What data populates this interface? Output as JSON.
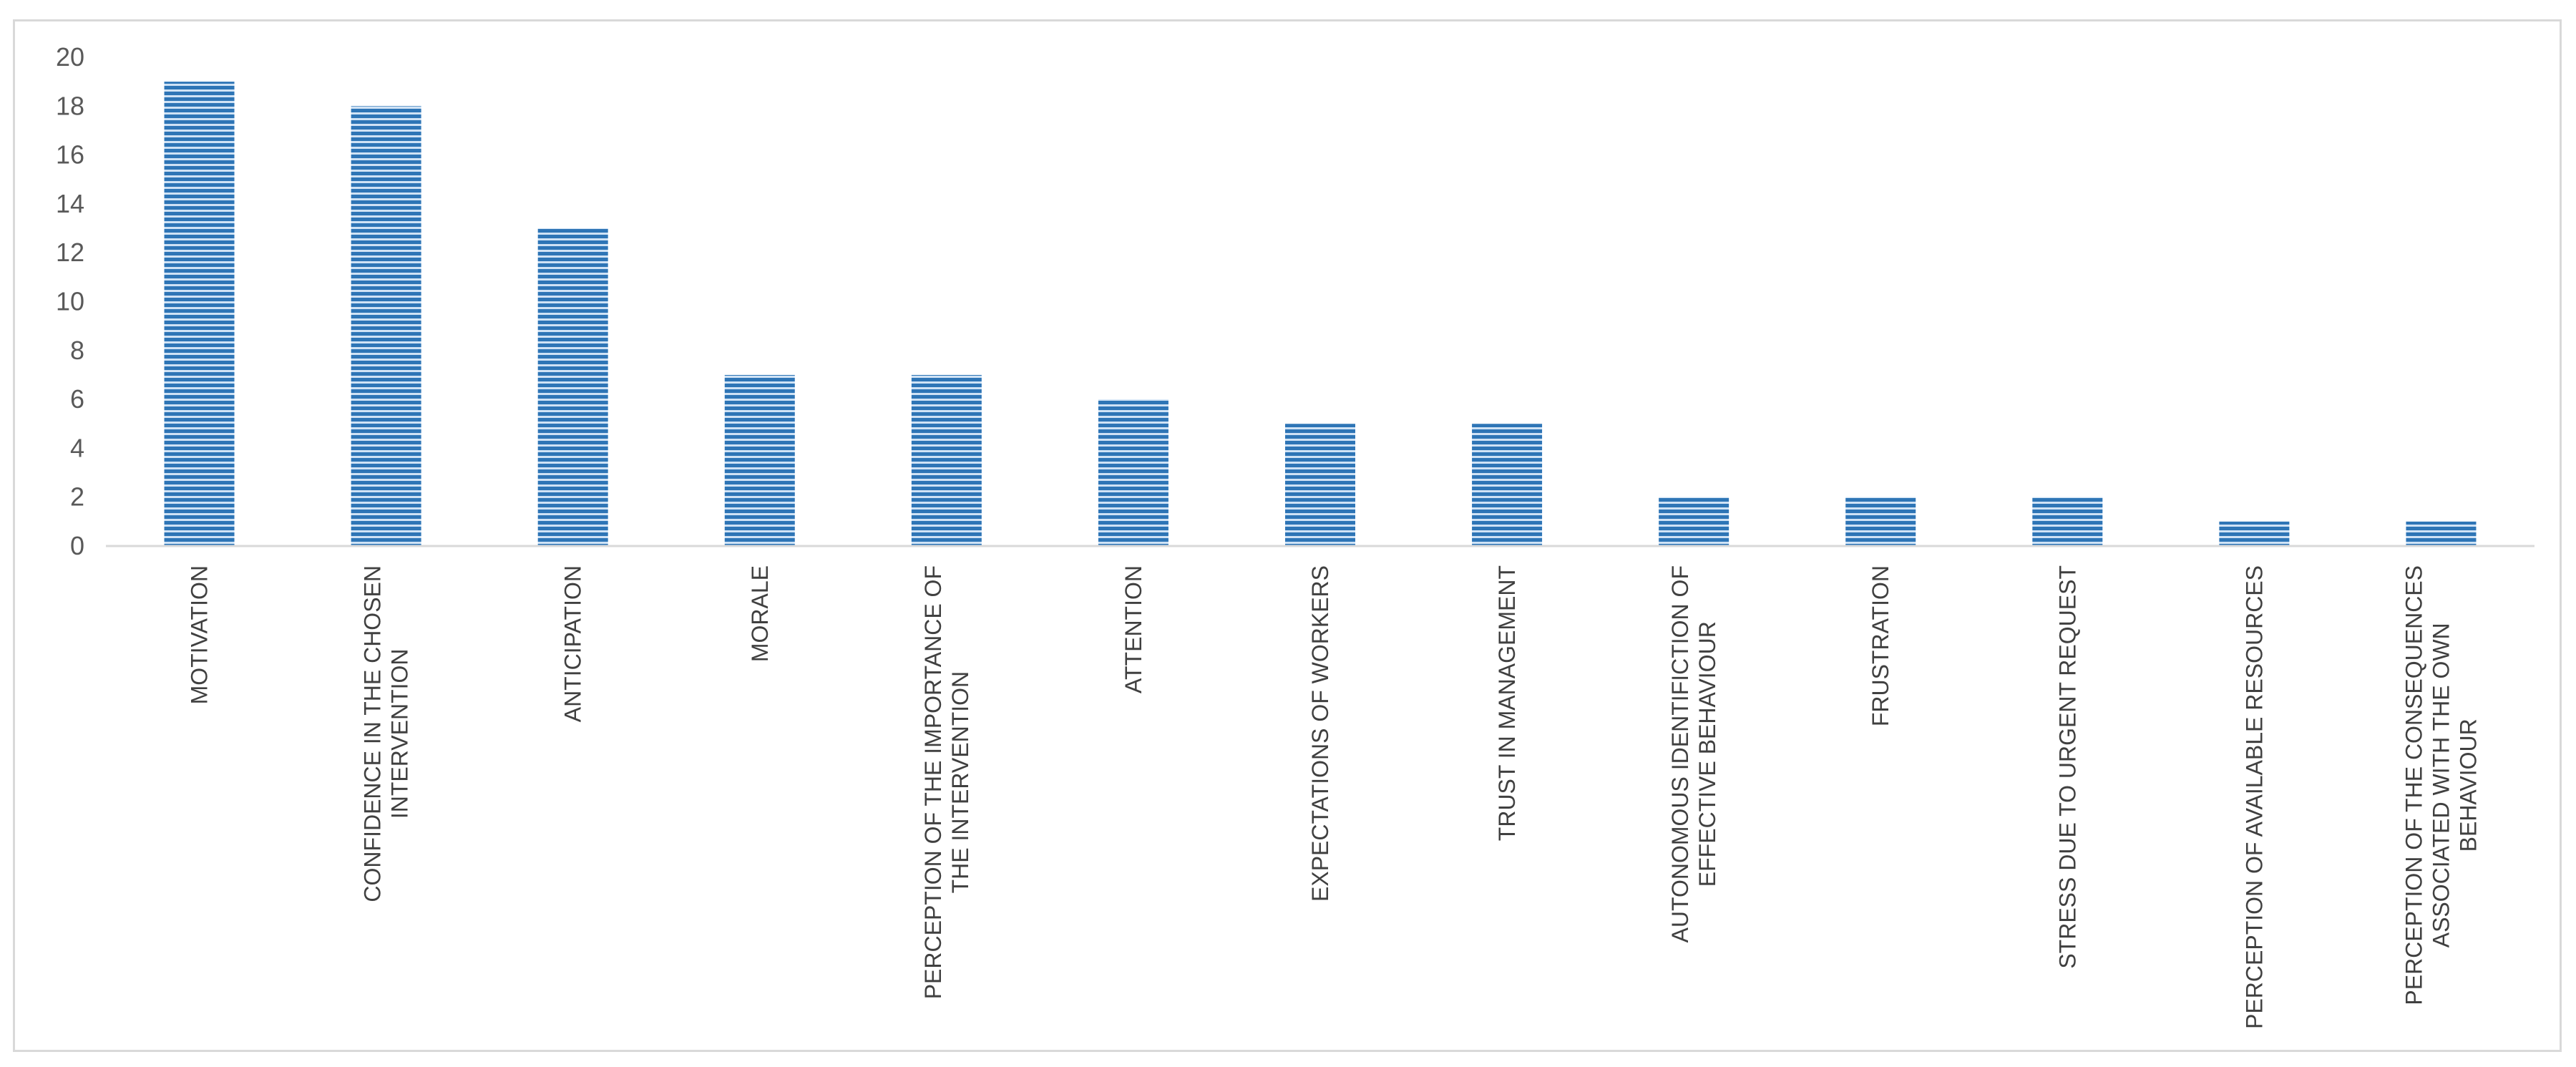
{
  "chart_data": {
    "type": "bar",
    "title": "",
    "xlabel": "",
    "ylabel": "",
    "ylim": [
      0,
      20
    ],
    "yticks": [
      0,
      2,
      4,
      6,
      8,
      10,
      12,
      14,
      16,
      18,
      20
    ],
    "grid": false,
    "legend": "none",
    "bar_color": "#2e75b6",
    "bar_stripe_color": "#cfe2f5",
    "categories": [
      [
        "MOTIVATION"
      ],
      [
        "CONFIDENCE IN THE CHOSEN",
        "INTERVENTION"
      ],
      [
        "ANTICIPATION"
      ],
      [
        "MORALE"
      ],
      [
        "PERCEPTION OF THE IMPORTANCE OF",
        "THE INTERVENTION"
      ],
      [
        "ATTENTION"
      ],
      [
        "EXPECTATIONS OF WORKERS"
      ],
      [
        "TRUST IN MANAGEMENT"
      ],
      [
        "AUTONOMOUS IDENTIFICTION OF",
        "EFFECTIVE BEHAVIOUR"
      ],
      [
        "FRUSTRATION"
      ],
      [
        "STRESS DUE TO URGENT REQUEST"
      ],
      [
        "PERCEPTION OF AVAILABLE RESOURCES"
      ],
      [
        "PERCEPTION OF THE CONSEQUENCES",
        "ASSOCIATED WITH THE OWN",
        "BEHAVIOUR"
      ]
    ],
    "values": [
      19,
      18,
      13,
      7,
      7,
      6,
      5,
      5,
      2,
      2,
      2,
      1,
      1
    ]
  }
}
